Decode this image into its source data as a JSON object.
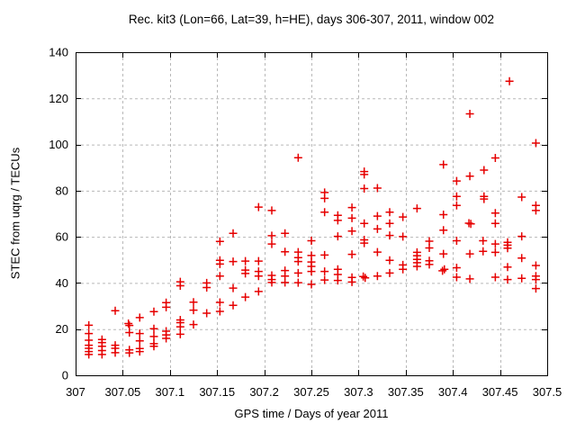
{
  "chart_data": {
    "type": "scatter",
    "title": "Rec. kit3 (Lon=66, Lat=39, h=HE), days 306-307, 2011, window 002",
    "xlabel": "GPS time / Days of year 2011",
    "ylabel": "STEC from uqrg / TECUs",
    "xlim": [
      307,
      307.5
    ],
    "ylim": [
      0,
      140
    ],
    "xticks": [
      307,
      307.05,
      307.1,
      307.15,
      307.2,
      307.25,
      307.3,
      307.35,
      307.4,
      307.45,
      307.5
    ],
    "xtick_labels": [
      "307",
      "307.05",
      "307.1",
      "307.15",
      "307.2",
      "307.25",
      "307.3",
      "307.35",
      "307.4",
      "307.45",
      "307.5"
    ],
    "yticks": [
      0,
      20,
      40,
      60,
      80,
      100,
      120,
      140
    ],
    "ytick_labels": [
      "0",
      "20",
      "40",
      "60",
      "80",
      "100",
      "120",
      "140"
    ],
    "grid": true,
    "legend_position": "none",
    "marker": {
      "shape": "plus",
      "size": 9,
      "color": "#e60000"
    },
    "colors": {
      "marker": "#e60000",
      "grid": "#b8b8b8",
      "axis": "#000000",
      "background": "#ffffff",
      "text": "#000000"
    },
    "series": [
      {
        "name": "STEC",
        "points": [
          [
            307.014,
            21.7
          ],
          [
            307.014,
            18.1
          ],
          [
            307.014,
            15.2
          ],
          [
            307.014,
            13.0
          ],
          [
            307.014,
            11.7
          ],
          [
            307.014,
            10.3
          ],
          [
            307.014,
            9.0
          ],
          [
            307.028,
            15.5
          ],
          [
            307.028,
            14.2
          ],
          [
            307.028,
            12.6
          ],
          [
            307.028,
            10.7
          ],
          [
            307.028,
            9.0
          ],
          [
            307.042,
            28.0
          ],
          [
            307.042,
            13.0
          ],
          [
            307.042,
            11.7
          ],
          [
            307.042,
            9.8
          ],
          [
            307.056,
            22.4
          ],
          [
            307.057,
            21.6
          ],
          [
            307.057,
            18.5
          ],
          [
            307.057,
            11.0
          ],
          [
            307.057,
            9.7
          ],
          [
            307.068,
            25.0
          ],
          [
            307.068,
            18.1
          ],
          [
            307.068,
            14.9
          ],
          [
            307.068,
            11.6
          ],
          [
            307.068,
            10.3
          ],
          [
            307.083,
            27.6
          ],
          [
            307.083,
            20.2
          ],
          [
            307.083,
            16.8
          ],
          [
            307.083,
            13.7
          ],
          [
            307.083,
            12.6
          ],
          [
            307.096,
            31.5
          ],
          [
            307.096,
            29.5
          ],
          [
            307.096,
            19.1
          ],
          [
            307.096,
            17.5
          ],
          [
            307.096,
            16.0
          ],
          [
            307.111,
            40.5
          ],
          [
            307.111,
            38.8
          ],
          [
            307.111,
            24.0
          ],
          [
            307.111,
            22.8
          ],
          [
            307.111,
            21.0
          ],
          [
            307.111,
            17.8
          ],
          [
            307.125,
            31.7
          ],
          [
            307.125,
            28.2
          ],
          [
            307.125,
            22.0
          ],
          [
            307.139,
            40.0
          ],
          [
            307.139,
            38.0
          ],
          [
            307.139,
            26.9
          ],
          [
            307.153,
            58.0
          ],
          [
            307.153,
            49.8
          ],
          [
            307.153,
            48.2
          ],
          [
            307.153,
            43.0
          ],
          [
            307.153,
            31.6
          ],
          [
            307.153,
            27.7
          ],
          [
            307.167,
            61.5
          ],
          [
            307.167,
            49.3
          ],
          [
            307.167,
            37.8
          ],
          [
            307.167,
            30.3
          ],
          [
            307.18,
            49.5
          ],
          [
            307.18,
            45.6
          ],
          [
            307.18,
            44.1
          ],
          [
            307.18,
            33.9
          ],
          [
            307.194,
            72.9
          ],
          [
            307.194,
            49.5
          ],
          [
            307.194,
            45.0
          ],
          [
            307.194,
            43.0
          ],
          [
            307.194,
            36.3
          ],
          [
            307.208,
            71.4
          ],
          [
            307.208,
            60.5
          ],
          [
            307.208,
            56.9
          ],
          [
            307.208,
            43.3
          ],
          [
            307.208,
            41.5
          ],
          [
            307.208,
            40.2
          ],
          [
            307.222,
            61.5
          ],
          [
            307.222,
            53.5
          ],
          [
            307.222,
            45.4
          ],
          [
            307.222,
            43.0
          ],
          [
            307.222,
            40.2
          ],
          [
            307.236,
            94.3
          ],
          [
            307.236,
            53.4
          ],
          [
            307.236,
            51.0
          ],
          [
            307.236,
            49.3
          ],
          [
            307.236,
            44.3
          ],
          [
            307.236,
            40.1
          ],
          [
            307.25,
            58.3
          ],
          [
            307.25,
            51.9
          ],
          [
            307.25,
            49.1
          ],
          [
            307.25,
            47.2
          ],
          [
            307.25,
            45.0
          ],
          [
            307.25,
            39.4
          ],
          [
            307.264,
            79.2
          ],
          [
            307.264,
            76.7
          ],
          [
            307.264,
            70.7
          ],
          [
            307.264,
            52.1
          ],
          [
            307.264,
            45.0
          ],
          [
            307.264,
            41.3
          ],
          [
            307.278,
            69.3
          ],
          [
            307.278,
            67.1
          ],
          [
            307.278,
            60.2
          ],
          [
            307.278,
            45.9
          ],
          [
            307.278,
            43.7
          ],
          [
            307.278,
            41.1
          ],
          [
            307.293,
            72.7
          ],
          [
            307.293,
            68.1
          ],
          [
            307.293,
            62.5
          ],
          [
            307.293,
            52.4
          ],
          [
            307.293,
            42.4
          ],
          [
            307.293,
            40.4
          ],
          [
            307.306,
            88.3
          ],
          [
            307.306,
            87.0
          ],
          [
            307.306,
            80.9
          ],
          [
            307.306,
            65.8
          ],
          [
            307.306,
            58.7
          ],
          [
            307.306,
            57.3
          ],
          [
            307.305,
            42.8
          ],
          [
            307.307,
            42.2
          ],
          [
            307.32,
            81.1
          ],
          [
            307.32,
            69.0
          ],
          [
            307.32,
            63.4
          ],
          [
            307.32,
            53.4
          ],
          [
            307.32,
            43.0
          ],
          [
            307.333,
            70.7
          ],
          [
            307.333,
            65.8
          ],
          [
            307.333,
            60.6
          ],
          [
            307.333,
            49.8
          ],
          [
            307.333,
            44.3
          ],
          [
            307.347,
            68.6
          ],
          [
            307.347,
            60.1
          ],
          [
            307.347,
            47.8
          ],
          [
            307.347,
            45.9
          ],
          [
            307.362,
            72.3
          ],
          [
            307.362,
            53.3
          ],
          [
            307.362,
            51.8
          ],
          [
            307.362,
            50.2
          ],
          [
            307.362,
            48.8
          ],
          [
            307.362,
            47.2
          ],
          [
            307.375,
            58.1
          ],
          [
            307.375,
            55.2
          ],
          [
            307.375,
            49.6
          ],
          [
            307.375,
            48.0
          ],
          [
            307.39,
            91.3
          ],
          [
            307.39,
            69.6
          ],
          [
            307.39,
            62.9
          ],
          [
            307.39,
            52.6
          ],
          [
            307.391,
            45.9
          ],
          [
            307.389,
            45.3
          ],
          [
            307.404,
            84.2
          ],
          [
            307.404,
            77.5
          ],
          [
            307.404,
            73.6
          ],
          [
            307.404,
            58.3
          ],
          [
            307.404,
            46.6
          ],
          [
            307.404,
            42.5
          ],
          [
            307.418,
            113.3
          ],
          [
            307.418,
            86.3
          ],
          [
            307.417,
            65.9
          ],
          [
            307.419,
            65.6
          ],
          [
            307.418,
            52.6
          ],
          [
            307.418,
            41.8
          ],
          [
            307.433,
            88.9
          ],
          [
            307.433,
            77.5
          ],
          [
            307.433,
            76.4
          ],
          [
            307.432,
            58.3
          ],
          [
            307.432,
            53.7
          ],
          [
            307.445,
            94.2
          ],
          [
            307.445,
            70.3
          ],
          [
            307.445,
            65.8
          ],
          [
            307.445,
            56.9
          ],
          [
            307.445,
            53.3
          ],
          [
            307.445,
            42.5
          ],
          [
            307.46,
            127.4
          ],
          [
            307.458,
            57.6
          ],
          [
            307.458,
            56.4
          ],
          [
            307.458,
            55.1
          ],
          [
            307.458,
            46.9
          ],
          [
            307.458,
            41.5
          ],
          [
            307.473,
            77.2
          ],
          [
            307.473,
            60.2
          ],
          [
            307.473,
            50.8
          ],
          [
            307.473,
            42.0
          ],
          [
            307.488,
            100.6
          ],
          [
            307.488,
            73.6
          ],
          [
            307.488,
            71.4
          ],
          [
            307.488,
            47.6
          ],
          [
            307.488,
            43.0
          ],
          [
            307.488,
            41.5
          ],
          [
            307.488,
            37.6
          ]
        ]
      }
    ]
  }
}
